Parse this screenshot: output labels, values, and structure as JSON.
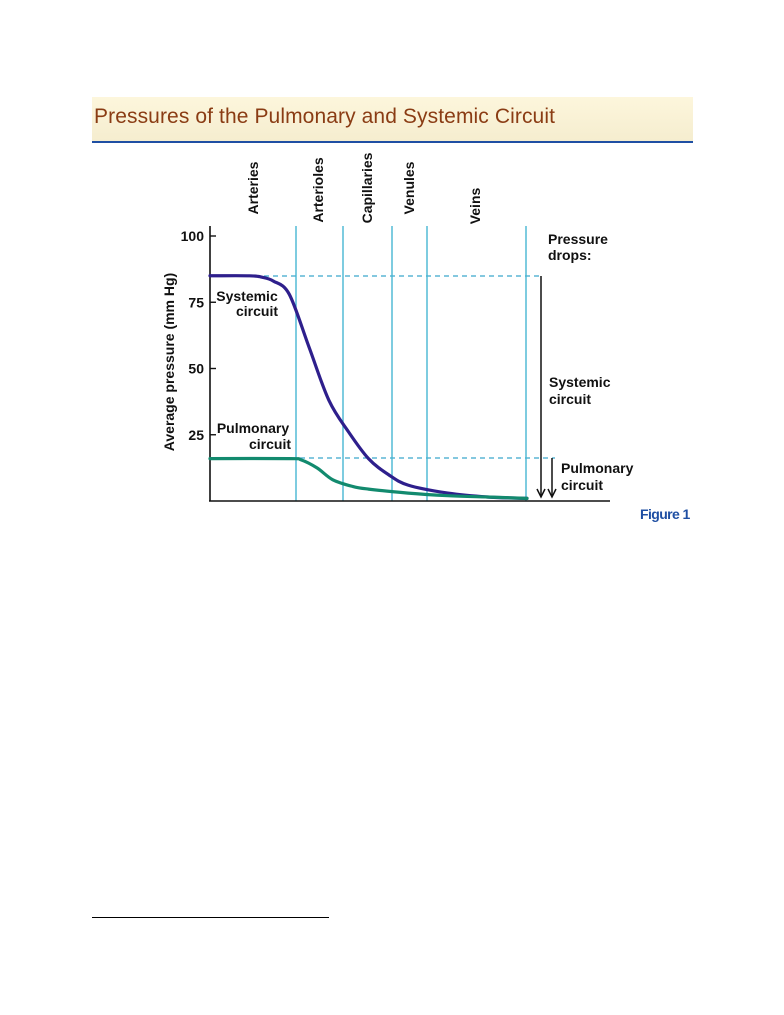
{
  "page": {
    "figure_label": "Figure 1"
  },
  "chart_data": {
    "type": "line",
    "title": "Pressures of the Pulmonary and Systemic Circuit",
    "xlabel": "",
    "ylabel": "Average pressure (mm Hg)",
    "ylim": [
      0,
      100
    ],
    "yticks": [
      25,
      50,
      75,
      100
    ],
    "grid": false,
    "vessel_labels": [
      "Arteries",
      "Arterioles",
      "Capillaries",
      "Venules",
      "Veins"
    ],
    "series": [
      {
        "name": "Systemic circuit",
        "color": "#2e1f8c",
        "x": [
          0,
          1,
          1.3,
          1.6,
          2,
          2.5,
          3,
          3.5,
          4,
          4.5,
          5,
          6,
          7,
          8
        ],
        "values": [
          85,
          85,
          84.5,
          83,
          78,
          58,
          38,
          26,
          16,
          10,
          6,
          3,
          1.5,
          1
        ]
      },
      {
        "name": "Pulmonary circuit",
        "color": "#128a6e",
        "x": [
          0,
          2,
          2.3,
          2.7,
          3.1,
          3.6,
          4,
          5,
          6,
          7,
          8
        ],
        "values": [
          16,
          16,
          15.5,
          12.5,
          8,
          5.5,
          4.5,
          3,
          2,
          1.5,
          1
        ]
      }
    ],
    "annotations": {
      "pressure_drops_header": "Pressure drops:",
      "systemic_drop_label": "Systemic circuit",
      "pulmonary_drop_label": "Pulmonary circuit"
    }
  }
}
